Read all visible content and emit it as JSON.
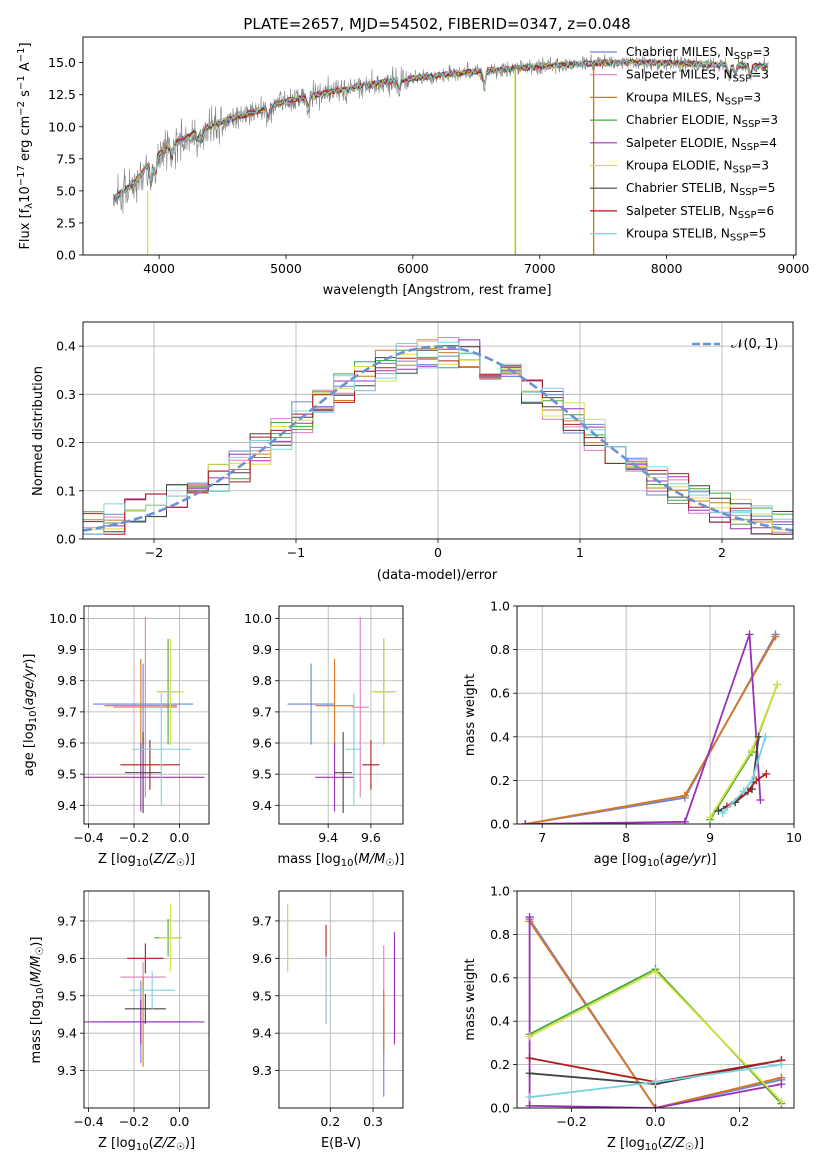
{
  "title": "PLATE=2657, MJD=54502, FIBERID=0347, z=0.048",
  "colors": {
    "Chabrier MILES": "#6a87d4",
    "Salpeter MILES": "#e07fbf",
    "Kroupa MILES": "#d4791e",
    "Chabrier ELODIE": "#44aa44",
    "Salpeter ELODIE": "#9b30b8",
    "Kroupa ELODIE": "#d8e040",
    "Chabrier STELIB": "#444444",
    "Salpeter STELIB": "#b01c1c",
    "Kroupa STELIB": "#7ad4dc",
    "gaussian": "#6a93d4",
    "data": "#808080"
  },
  "chart_data": [
    {
      "id": "spectrum",
      "type": "line",
      "xlabel": "wavelength [Angstrom, rest frame]",
      "ylabel": "Flux [f_λ 10^-17 erg cm^-2 s^-1 A^-1]",
      "xlim": [
        3400,
        9020
      ],
      "ylim": [
        0,
        17
      ],
      "xticks": [
        "4000",
        "5000",
        "6000",
        "7000",
        "8000",
        "9000"
      ],
      "yticks": [
        "0.0",
        "2.5",
        "5.0",
        "7.5",
        "10.0",
        "12.5",
        "15.0"
      ],
      "legend_position": "right",
      "legend": [
        {
          "name": "Chabrier MILES",
          "nssp": "3"
        },
        {
          "name": "Salpeter MILES",
          "nssp": "3"
        },
        {
          "name": "Kroupa MILES",
          "nssp": "3"
        },
        {
          "name": "Chabrier ELODIE",
          "nssp": "3"
        },
        {
          "name": "Salpeter ELODIE",
          "nssp": "4"
        },
        {
          "name": "Kroupa ELODIE",
          "nssp": "3"
        },
        {
          "name": "Chabrier STELIB",
          "nssp": "5"
        },
        {
          "name": "Salpeter STELIB",
          "nssp": "6"
        },
        {
          "name": "Kroupa STELIB",
          "nssp": "5"
        }
      ],
      "data_trend": {
        "x": [
          3650,
          3750,
          3850,
          3950,
          4100,
          4300,
          4500,
          4800,
          5000,
          5300,
          5600,
          6000,
          6500,
          7000,
          7500,
          8000,
          8500,
          8800
        ],
        "y": [
          4.5,
          5.2,
          6.2,
          7.5,
          8.6,
          9.6,
          10.4,
          11.3,
          12.0,
          12.6,
          13.2,
          13.8,
          14.3,
          14.7,
          15.0,
          15.0,
          14.8,
          14.7
        ]
      }
    },
    {
      "id": "residuals",
      "type": "bar",
      "xlabel": "(data-model)/error",
      "ylabel": "Normed distribution",
      "xlim": [
        -2.5,
        2.5
      ],
      "ylim": [
        0,
        0.45
      ],
      "xticks": [
        "−2",
        "−1",
        "0",
        "1",
        "2"
      ],
      "yticks": [
        "0.0",
        "0.1",
        "0.2",
        "0.3",
        "0.4"
      ],
      "grid": true,
      "legend_position": "top-right",
      "gaussian_label": "𝒩(0, 1)",
      "gaussian": {
        "mean": 0,
        "sigma": 1
      }
    },
    {
      "id": "z-age",
      "type": "scatter",
      "xlabel": "Z [log10(Z/Z☉)]",
      "ylabel": "age  [log10(age/yr)]",
      "xlim": [
        -0.42,
        0.13
      ],
      "ylim": [
        9.34,
        10.04
      ],
      "xticks": [
        "−0.4",
        "−0.2",
        "0.0"
      ],
      "yticks": [
        "9.4",
        "9.5",
        "9.6",
        "9.7",
        "9.8",
        "9.9",
        "10.0"
      ],
      "grid": true,
      "points": [
        {
          "series": "Chabrier MILES",
          "x": -0.16,
          "y": 9.725,
          "xerr": 0.22,
          "yerr": 0.13
        },
        {
          "series": "Salpeter MILES",
          "x": -0.15,
          "y": 9.715,
          "xerr": 0.14,
          "yerr": 0.29
        },
        {
          "series": "Kroupa MILES",
          "x": -0.17,
          "y": 9.72,
          "xerr": 0.16,
          "yerr": 0.15
        },
        {
          "series": "Chabrier ELODIE",
          "x": -0.05,
          "y": 9.765,
          "xerr": 0.05,
          "yerr": 0.17
        },
        {
          "series": "Salpeter ELODIE",
          "x": -0.17,
          "y": 9.49,
          "xerr": 0.28,
          "yerr": 0.11
        },
        {
          "series": "Kroupa ELODIE",
          "x": -0.04,
          "y": 9.765,
          "xerr": 0.06,
          "yerr": 0.17
        },
        {
          "series": "Chabrier STELIB",
          "x": -0.16,
          "y": 9.505,
          "xerr": 0.08,
          "yerr": 0.13
        },
        {
          "series": "Salpeter STELIB",
          "x": -0.13,
          "y": 9.53,
          "xerr": 0.13,
          "yerr": 0.08
        },
        {
          "series": "Kroupa STELIB",
          "x": -0.08,
          "y": 9.58,
          "xerr": 0.13,
          "yerr": 0.18
        }
      ]
    },
    {
      "id": "mass-age",
      "type": "scatter",
      "xlabel": "mass [log10(M/M☉)]",
      "ylabel": "",
      "xlim": [
        9.17,
        9.75
      ],
      "ylim": [
        9.34,
        10.04
      ],
      "xticks": [
        "9.4",
        "9.6"
      ],
      "yticks": [
        "9.4",
        "9.5",
        "9.6",
        "9.7",
        "9.8",
        "9.9",
        "10.0"
      ],
      "grid": true,
      "points": [
        {
          "series": "Chabrier MILES",
          "x": 9.32,
          "y": 9.725,
          "xerr": 0.11,
          "yerr": 0.13
        },
        {
          "series": "Salpeter MILES",
          "x": 9.55,
          "y": 9.715,
          "xerr": 0.04,
          "yerr": 0.29
        },
        {
          "series": "Kroupa MILES",
          "x": 9.43,
          "y": 9.72,
          "xerr": 0.09,
          "yerr": 0.15
        },
        {
          "series": "Chabrier ELODIE",
          "x": 9.66,
          "y": 9.765,
          "xerr": 0.05,
          "yerr": 0.17
        },
        {
          "series": "Salpeter ELODIE",
          "x": 9.43,
          "y": 9.49,
          "xerr": 0.09,
          "yerr": 0.11
        },
        {
          "series": "Kroupa ELODIE",
          "x": 9.66,
          "y": 9.765,
          "xerr": 0.06,
          "yerr": 0.17
        },
        {
          "series": "Chabrier STELIB",
          "x": 9.47,
          "y": 9.505,
          "xerr": 0.04,
          "yerr": 0.13
        },
        {
          "series": "Salpeter STELIB",
          "x": 9.6,
          "y": 9.53,
          "xerr": 0.04,
          "yerr": 0.08
        },
        {
          "series": "Kroupa STELIB",
          "x": 9.52,
          "y": 9.58,
          "xerr": 0.04,
          "yerr": 0.18
        }
      ]
    },
    {
      "id": "age-weight",
      "type": "line",
      "xlabel": "age  [log10(age/yr)]",
      "ylabel": "mass weight",
      "xlim": [
        6.7,
        10.0
      ],
      "ylim": [
        0,
        1.0
      ],
      "xticks": [
        "7",
        "8",
        "9",
        "10"
      ],
      "yticks": [
        "0.0",
        "0.2",
        "0.4",
        "0.6",
        "0.8",
        "1.0"
      ],
      "grid": true,
      "series": [
        {
          "series": "Chabrier MILES",
          "x": [
            6.8,
            8.7,
            9.78
          ],
          "y": [
            0.0,
            0.12,
            0.87
          ]
        },
        {
          "series": "Salpeter MILES",
          "x": [
            6.8,
            8.7,
            9.78
          ],
          "y": [
            0.0,
            0.13,
            0.86
          ]
        },
        {
          "series": "Kroupa MILES",
          "x": [
            6.8,
            8.7,
            9.78
          ],
          "y": [
            0.0,
            0.13,
            0.86
          ]
        },
        {
          "series": "Chabrier ELODIE",
          "x": [
            9.0,
            9.5,
            9.8
          ],
          "y": [
            0.02,
            0.33,
            0.64
          ]
        },
        {
          "series": "Salpeter ELODIE",
          "x": [
            6.8,
            8.7,
            9.47,
            9.6
          ],
          "y": [
            0.0,
            0.01,
            0.87,
            0.11
          ]
        },
        {
          "series": "Kroupa ELODIE",
          "x": [
            9.0,
            9.5,
            9.8
          ],
          "y": [
            0.03,
            0.34,
            0.64
          ]
        },
        {
          "series": "Chabrier STELIB",
          "x": [
            9.1,
            9.3,
            9.5,
            9.58
          ],
          "y": [
            0.06,
            0.1,
            0.16,
            0.4
          ]
        },
        {
          "series": "Salpeter STELIB",
          "x": [
            9.2,
            9.45,
            9.55,
            9.67
          ],
          "y": [
            0.08,
            0.15,
            0.2,
            0.23
          ]
        },
        {
          "series": "Kroupa STELIB",
          "x": [
            9.15,
            9.4,
            9.5,
            9.66
          ],
          "y": [
            0.05,
            0.15,
            0.2,
            0.4
          ]
        }
      ]
    },
    {
      "id": "z-mass",
      "type": "scatter",
      "xlabel": "Z [log10(Z/Z☉)]",
      "ylabel": "mass [log10(M/M☉)]",
      "xlim": [
        -0.42,
        0.13
      ],
      "ylim": [
        9.2,
        9.78
      ],
      "xticks": [
        "−0.4",
        "−0.2",
        "0.0"
      ],
      "yticks": [
        "9.3",
        "9.4",
        "9.5",
        "9.6",
        "9.7"
      ],
      "grid": true,
      "points": [
        {
          "series": "Chabrier MILES",
          "x": -0.17,
          "y": 9.43,
          "xerr": 0.22,
          "yerr": 0.11
        },
        {
          "series": "Salpeter MILES",
          "x": -0.16,
          "y": 9.55,
          "xerr": 0.1,
          "yerr": 0.04
        },
        {
          "series": "Kroupa MILES",
          "x": -0.16,
          "y": 9.43,
          "xerr": 0.2,
          "yerr": 0.12
        },
        {
          "series": "Chabrier ELODIE",
          "x": -0.05,
          "y": 9.655,
          "xerr": 0.06,
          "yerr": 0.05
        },
        {
          "series": "Salpeter ELODIE",
          "x": -0.17,
          "y": 9.43,
          "xerr": 0.28,
          "yerr": 0.06
        },
        {
          "series": "Kroupa ELODIE",
          "x": -0.04,
          "y": 9.655,
          "xerr": 0.05,
          "yerr": 0.09
        },
        {
          "series": "Chabrier STELIB",
          "x": -0.15,
          "y": 9.465,
          "xerr": 0.09,
          "yerr": 0.04
        },
        {
          "series": "Salpeter STELIB",
          "x": -0.15,
          "y": 9.6,
          "xerr": 0.08,
          "yerr": 0.04
        },
        {
          "series": "Kroupa STELIB",
          "x": -0.12,
          "y": 9.515,
          "xerr": 0.1,
          "yerr": 0.05
        }
      ]
    },
    {
      "id": "ebv-mass",
      "type": "scatter",
      "xlabel": "E(B-V)",
      "ylabel": "",
      "xlim": [
        0.08,
        0.37
      ],
      "ylim": [
        9.2,
        9.78
      ],
      "xticks": [
        "0.2",
        "0.3"
      ],
      "yticks": [
        "9.3",
        "9.4",
        "9.5",
        "9.6",
        "9.7"
      ],
      "grid": true,
      "points": [
        {
          "series": "Chabrier MILES",
          "x": 0.325,
          "y": 9.35,
          "xerr": 0,
          "yerr": 0.12
        },
        {
          "series": "Salpeter MILES",
          "x": 0.325,
          "y": 9.55,
          "xerr": 0,
          "yerr": 0.085
        },
        {
          "series": "Kroupa MILES",
          "x": 0.325,
          "y": 9.43,
          "xerr": 0,
          "yerr": 0.085
        },
        {
          "series": "Chabrier ELODIE",
          "x": 0.1,
          "y": 9.655,
          "xerr": 0,
          "yerr": 0.09
        },
        {
          "series": "Salpeter ELODIE",
          "x": 0.35,
          "y": 9.52,
          "xerr": 0,
          "yerr": 0.15
        },
        {
          "series": "Kroupa ELODIE",
          "x": 0.1,
          "y": 9.655,
          "xerr": 0,
          "yerr": 0.09
        },
        {
          "series": "Chabrier STELIB",
          "x": 0.19,
          "y": 9.465,
          "xerr": 0,
          "yerr": 0.04
        },
        {
          "series": "Salpeter STELIB",
          "x": 0.19,
          "y": 9.6,
          "xerr": 0,
          "yerr": 0.09
        },
        {
          "series": "Kroupa STELIB",
          "x": 0.19,
          "y": 9.515,
          "xerr": 0,
          "yerr": 0.09
        }
      ]
    },
    {
      "id": "z-weight",
      "type": "line",
      "xlabel": "Z [log10(Z/Z☉)]",
      "ylabel": "mass weight",
      "xlim": [
        -0.33,
        0.33
      ],
      "ylim": [
        0,
        1.0
      ],
      "xticks": [
        "−0.2",
        "0.0",
        "0.2"
      ],
      "yticks": [
        "0.0",
        "0.2",
        "0.4",
        "0.6",
        "0.8",
        "1.0"
      ],
      "grid": true,
      "series": [
        {
          "series": "Chabrier MILES",
          "x": [
            -0.3,
            0.0,
            0.3
          ],
          "y": [
            0.87,
            0.0,
            0.13
          ]
        },
        {
          "series": "Salpeter MILES",
          "x": [
            -0.3,
            0.0,
            0.3
          ],
          "y": [
            0.86,
            0.0,
            0.14
          ]
        },
        {
          "series": "Kroupa MILES",
          "x": [
            -0.3,
            0.0,
            0.3
          ],
          "y": [
            0.86,
            0.0,
            0.14
          ]
        },
        {
          "series": "Chabrier ELODIE",
          "x": [
            -0.3,
            0.0,
            0.3
          ],
          "y": [
            0.34,
            0.64,
            0.02
          ]
        },
        {
          "series": "Salpeter ELODIE",
          "x": [
            -0.3,
            -0.3,
            0.0,
            0.3
          ],
          "y": [
            0.88,
            0.01,
            0.0,
            0.11
          ]
        },
        {
          "series": "Kroupa ELODIE",
          "x": [
            -0.3,
            0.0,
            0.3
          ],
          "y": [
            0.33,
            0.63,
            0.03
          ]
        },
        {
          "series": "Chabrier STELIB",
          "x": [
            -0.3,
            0.0,
            0.3
          ],
          "y": [
            0.16,
            0.11,
            0.22
          ]
        },
        {
          "series": "Salpeter STELIB",
          "x": [
            -0.3,
            0.0,
            0.3
          ],
          "y": [
            0.23,
            0.12,
            0.22
          ]
        },
        {
          "series": "Kroupa STELIB",
          "x": [
            -0.3,
            0.0,
            0.3
          ],
          "y": [
            0.05,
            0.12,
            0.2
          ]
        }
      ]
    }
  ]
}
